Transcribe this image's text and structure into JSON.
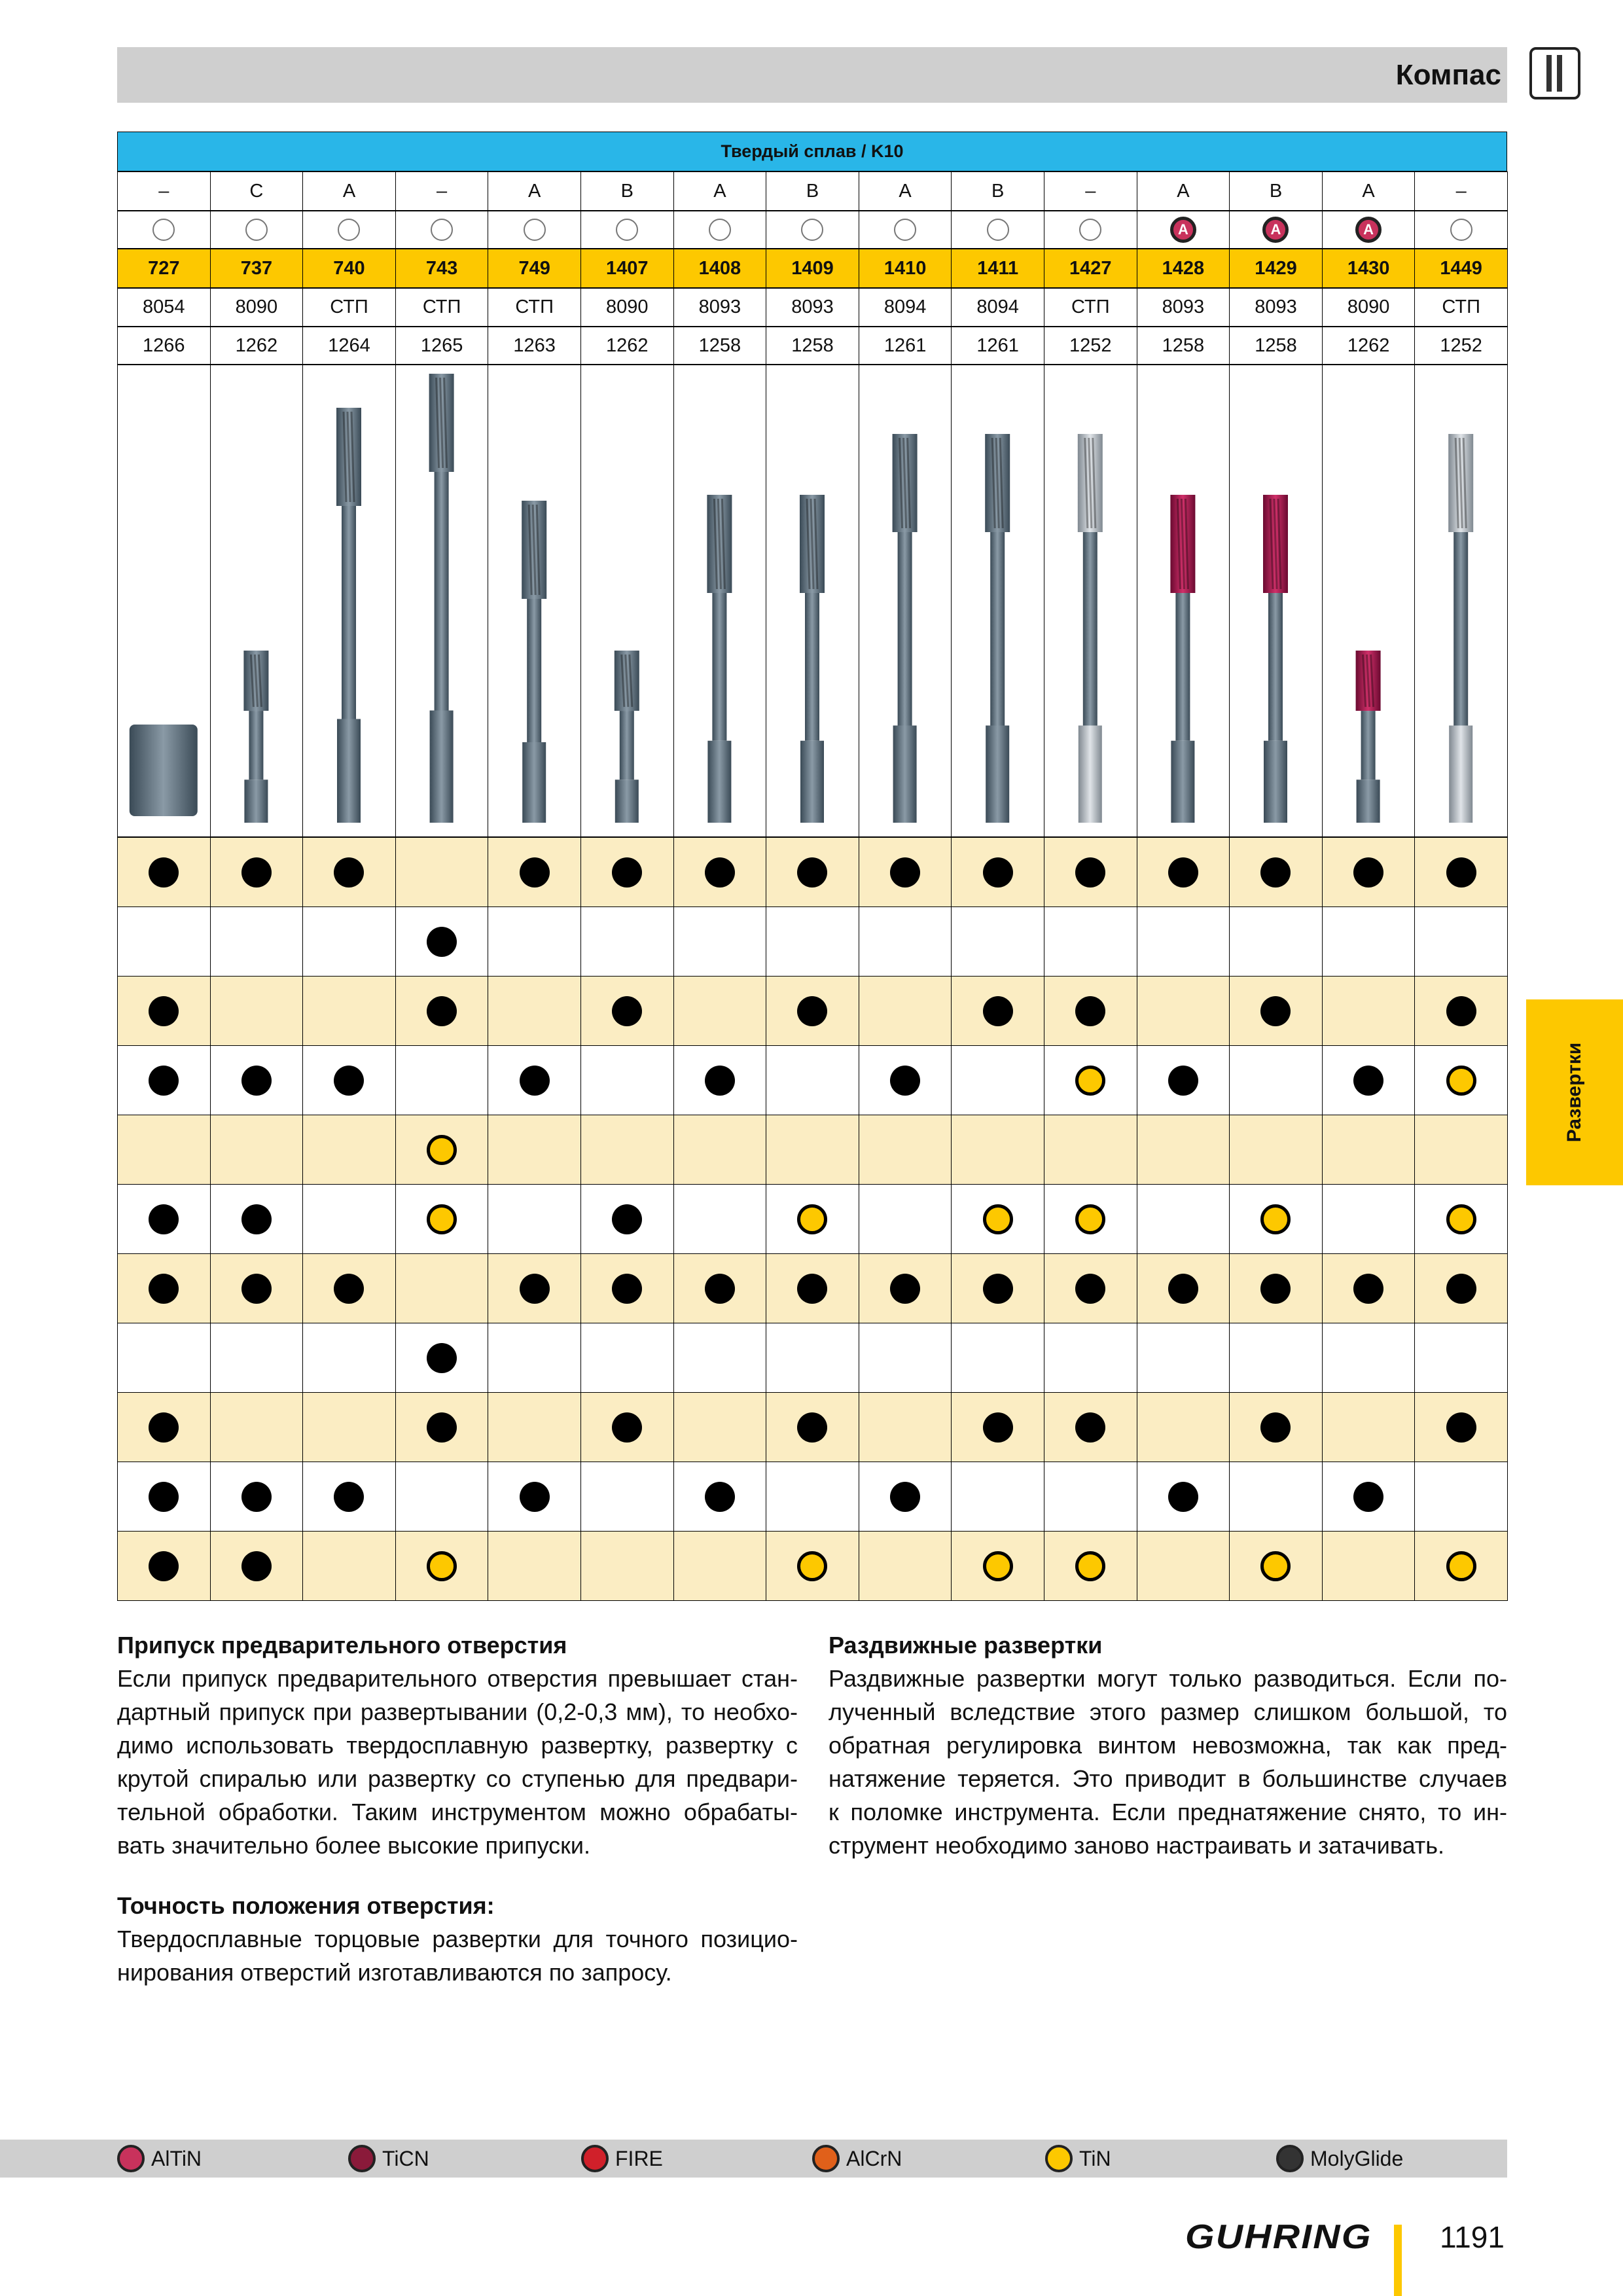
{
  "header": {
    "title": "Компас"
  },
  "side_tab": "Развертки",
  "table": {
    "title": "Твердый сплав / K10",
    "groups": [
      "–",
      "C",
      "A",
      "–",
      "A",
      "B",
      "A",
      "B",
      "A",
      "B",
      "–",
      "A",
      "B",
      "A",
      "–"
    ],
    "coatings": [
      null,
      null,
      null,
      null,
      null,
      null,
      null,
      null,
      null,
      null,
      null,
      "A",
      "A",
      "A",
      null
    ],
    "articles": [
      "727",
      "737",
      "740",
      "743",
      "749",
      "1407",
      "1408",
      "1409",
      "1410",
      "1411",
      "1427",
      "1428",
      "1429",
      "1430",
      "1449"
    ],
    "standards": [
      "8054",
      "8090",
      "СТП",
      "СТП",
      "СТП",
      "8090",
      "8093",
      "8093",
      "8094",
      "8094",
      "СТП",
      "8093",
      "8093",
      "8090",
      "СТП"
    ],
    "pages": [
      "1266",
      "1262",
      "1264",
      "1265",
      "1263",
      "1262",
      "1258",
      "1258",
      "1261",
      "1261",
      "1252",
      "1258",
      "1258",
      "1262",
      "1252"
    ],
    "matrix": [
      [
        "black",
        "black",
        "black",
        null,
        "black",
        "black",
        "black",
        "black",
        "black",
        "black",
        "black",
        "black",
        "black",
        "black",
        "black"
      ],
      [
        null,
        null,
        null,
        "black",
        null,
        null,
        null,
        null,
        null,
        null,
        null,
        null,
        null,
        null,
        null
      ],
      [
        "black",
        null,
        null,
        "black",
        null,
        "black",
        null,
        "black",
        null,
        "black",
        "black",
        null,
        "black",
        null,
        "black"
      ],
      [
        "black",
        "black",
        "black",
        null,
        "black",
        null,
        "black",
        null,
        "black",
        null,
        "yellow",
        "black",
        null,
        "black",
        "yellow"
      ],
      [
        null,
        null,
        null,
        "yellow",
        null,
        null,
        null,
        null,
        null,
        null,
        null,
        null,
        null,
        null,
        null
      ],
      [
        "black",
        "black",
        null,
        "yellow",
        null,
        "black",
        null,
        "yellow",
        null,
        "yellow",
        "yellow",
        null,
        "yellow",
        null,
        "yellow"
      ],
      [
        "black",
        "black",
        "black",
        null,
        "black",
        "black",
        "black",
        "black",
        "black",
        "black",
        "black",
        "black",
        "black",
        "black",
        "black"
      ],
      [
        null,
        null,
        null,
        "black",
        null,
        null,
        null,
        null,
        null,
        null,
        null,
        null,
        null,
        null,
        null
      ],
      [
        "black",
        null,
        null,
        "black",
        null,
        "black",
        null,
        "black",
        null,
        "black",
        "black",
        null,
        "black",
        null,
        "black"
      ],
      [
        "black",
        "black",
        "black",
        null,
        "black",
        null,
        "black",
        null,
        "black",
        null,
        null,
        "black",
        null,
        "black",
        null
      ],
      [
        "black",
        "black",
        null,
        "yellow",
        null,
        null,
        null,
        "yellow",
        null,
        "yellow",
        "yellow",
        null,
        "yellow",
        null,
        "yellow"
      ]
    ]
  },
  "sections": [
    {
      "heading": "Припуск предварительного отверстия",
      "lines": [
        "Если припуск предварительного отверстия превышает стан-",
        "дартный припуск при развертывании (0,2-0,3 мм), то необхо-",
        "димо использовать твердосплавную развертку, развертку с",
        "крутой спиралью или развертку со ступенью для предвари-",
        "тельной обработки. Таким инструментом можно обрабаты-",
        "вать значительно более высокие припуски."
      ]
    },
    {
      "heading": "Точность положения отверстия:",
      "lines": [
        "Твердосплавные торцовые развертки для точного позицио-",
        "нирования отверстий изготавливаются по запросу."
      ]
    },
    {
      "heading": "Раздвижные развертки",
      "lines": [
        "Раздвижные развертки могут только разводиться. Если по-",
        "лученный вследствие этого размер слишком большой, то",
        "обратная регулировка винтом невозможна, так как пред-",
        "натяжение теряется. Это приводит в большинстве случаев",
        "к поломке инструмента. Если преднатяжение снято, то ин-",
        "струмент необходимо заново настраивать и затачивать."
      ]
    }
  ],
  "legend": [
    "AlTiN",
    "TiCN",
    "FIRE",
    "AlCrN",
    "TiN",
    "MolyGlide"
  ],
  "footer": {
    "logo": "GUHRING",
    "page": "1191"
  }
}
